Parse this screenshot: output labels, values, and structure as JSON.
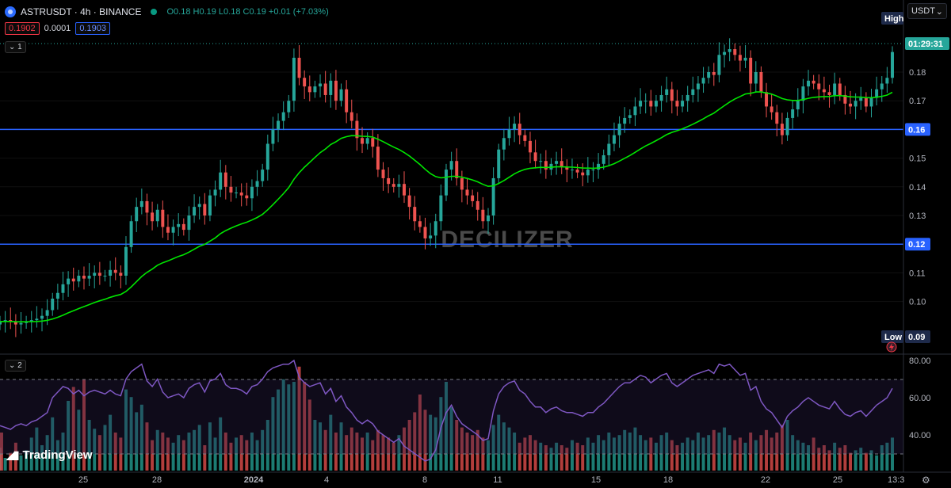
{
  "header": {
    "symbol": "ASTRUSDT · 4h · BINANCE",
    "ohlc": "O0.18 H0.19 L0.18 C0.19 +0.01 (+7.03%)",
    "bid": "0.1902",
    "spread": "0.0001",
    "ask": "0.1903",
    "pane1_label": "1",
    "pane2_label": "2",
    "currency": "USDT"
  },
  "watermark": "DECILIZER",
  "brand": "TradingView",
  "colors": {
    "up": "#26a69a",
    "down": "#ef5350",
    "ma": "#00e600",
    "hline": "#2962ff",
    "rsi": "#7e57c2",
    "axis_text": "#b2b5be"
  },
  "chart_data": [
    {
      "type": "candlestick",
      "title": "",
      "ylim": [
        0.09,
        0.19
      ],
      "y_ticks": [
        "0.18",
        "0.17",
        "0.16",
        "0.15",
        "0.14",
        "0.13",
        "0.12",
        "0.11",
        "0.10"
      ],
      "x_ticks": [
        "25",
        "28",
        "2024",
        "4",
        "8",
        "11",
        "15",
        "18",
        "22",
        "25"
      ],
      "time_label": "13:3",
      "countdown": "01:29:31",
      "horizontal_lines": [
        {
          "value": 0.16,
          "label": "0.16"
        },
        {
          "value": 0.12,
          "label": "0.12"
        }
      ],
      "high_label": "High",
      "low_label": "Low",
      "low_value": "0.09",
      "last_price": 0.19,
      "close_series": [
        0.093,
        0.0935,
        0.093,
        0.092,
        0.0925,
        0.093,
        0.0935,
        0.094,
        0.095,
        0.097,
        0.101,
        0.103,
        0.106,
        0.108,
        0.107,
        0.109,
        0.108,
        0.109,
        0.11,
        0.109,
        0.109,
        0.111,
        0.11,
        0.109,
        0.119,
        0.128,
        0.133,
        0.135,
        0.131,
        0.128,
        0.132,
        0.126,
        0.124,
        0.126,
        0.127,
        0.125,
        0.13,
        0.133,
        0.134,
        0.13,
        0.137,
        0.139,
        0.145,
        0.14,
        0.138,
        0.138,
        0.137,
        0.136,
        0.14,
        0.142,
        0.146,
        0.155,
        0.16,
        0.163,
        0.166,
        0.17,
        0.185,
        0.178,
        0.175,
        0.173,
        0.175,
        0.176,
        0.172,
        0.177,
        0.17,
        0.174,
        0.166,
        0.163,
        0.157,
        0.155,
        0.157,
        0.154,
        0.146,
        0.143,
        0.141,
        0.14,
        0.141,
        0.137,
        0.133,
        0.128,
        0.126,
        0.122,
        0.123,
        0.128,
        0.137,
        0.146,
        0.149,
        0.143,
        0.139,
        0.137,
        0.135,
        0.132,
        0.128,
        0.13,
        0.143,
        0.153,
        0.157,
        0.16,
        0.162,
        0.158,
        0.156,
        0.152,
        0.149,
        0.149,
        0.146,
        0.148,
        0.149,
        0.147,
        0.146,
        0.146,
        0.145,
        0.144,
        0.146,
        0.146,
        0.148,
        0.151,
        0.155,
        0.158,
        0.162,
        0.164,
        0.165,
        0.168,
        0.17,
        0.17,
        0.168,
        0.17,
        0.172,
        0.174,
        0.17,
        0.168,
        0.17,
        0.172,
        0.174,
        0.176,
        0.178,
        0.18,
        0.179,
        0.186,
        0.187,
        0.188,
        0.186,
        0.184,
        0.185,
        0.176,
        0.18,
        0.173,
        0.168,
        0.166,
        0.162,
        0.158,
        0.164,
        0.167,
        0.17,
        0.175,
        0.177,
        0.176,
        0.174,
        0.173,
        0.172,
        0.176,
        0.172,
        0.169,
        0.168,
        0.17,
        0.171,
        0.168,
        0.171,
        0.174,
        0.176,
        0.178,
        0.187
      ]
    },
    {
      "type": "line+bar",
      "title": "",
      "ylim": [
        25,
        80
      ],
      "y_ticks": [
        "80.00",
        "60.00",
        "40.00"
      ],
      "bands": [
        30,
        70
      ],
      "rsi_series": [
        45,
        44,
        43,
        45,
        46,
        45,
        47,
        48,
        50,
        52,
        60,
        63,
        66,
        65,
        62,
        64,
        61,
        63,
        64,
        63,
        62,
        64,
        62,
        61,
        70,
        74,
        76,
        78,
        69,
        66,
        70,
        63,
        60,
        61,
        62,
        60,
        65,
        67,
        68,
        63,
        69,
        70,
        73,
        67,
        65,
        65,
        64,
        62,
        66,
        67,
        70,
        74,
        76,
        77,
        78,
        78,
        80,
        71,
        68,
        66,
        67,
        68,
        62,
        65,
        58,
        61,
        55,
        52,
        48,
        46,
        48,
        46,
        42,
        40,
        38,
        36,
        38,
        34,
        32,
        30,
        28,
        26,
        27,
        32,
        44,
        52,
        56,
        50,
        46,
        44,
        42,
        40,
        37,
        38,
        53,
        62,
        66,
        68,
        69,
        64,
        62,
        58,
        55,
        55,
        52,
        54,
        55,
        53,
        52,
        52,
        51,
        50,
        52,
        52,
        55,
        57,
        60,
        63,
        66,
        68,
        68,
        70,
        72,
        71,
        68,
        70,
        72,
        73,
        68,
        66,
        68,
        70,
        72,
        73,
        74,
        75,
        73,
        78,
        77,
        78,
        75,
        72,
        73,
        64,
        66,
        58,
        54,
        52,
        48,
        44,
        50,
        53,
        55,
        58,
        60,
        58,
        56,
        55,
        54,
        58,
        54,
        51,
        50,
        52,
        53,
        50,
        53,
        56,
        58,
        60,
        65
      ],
      "volume_series": [
        18,
        10,
        14,
        22,
        12,
        16,
        26,
        34,
        20,
        28,
        42,
        24,
        30,
        55,
        66,
        48,
        72,
        40,
        33,
        28,
        36,
        44,
        30,
        26,
        64,
        58,
        46,
        52,
        38,
        24,
        32,
        30,
        26,
        22,
        28,
        24,
        30,
        32,
        36,
        20,
        38,
        26,
        42,
        30,
        22,
        26,
        28,
        24,
        30,
        24,
        32,
        40,
        58,
        64,
        72,
        68,
        70,
        82,
        70,
        56,
        40,
        38,
        32,
        44,
        30,
        38,
        28,
        34,
        30,
        26,
        30,
        24,
        32,
        28,
        26,
        22,
        28,
        34,
        40,
        46,
        60,
        48,
        44,
        42,
        58,
        70,
        50,
        40,
        34,
        30,
        28,
        32,
        26,
        24,
        36,
        44,
        38,
        34,
        30,
        22,
        26,
        28,
        24,
        22,
        20,
        18,
        22,
        20,
        18,
        24,
        22,
        20,
        26,
        22,
        28,
        24,
        30,
        26,
        28,
        32,
        30,
        34,
        28,
        24,
        26,
        22,
        28,
        30,
        24,
        20,
        22,
        26,
        24,
        30,
        26,
        28,
        32,
        30,
        34,
        28,
        24,
        26,
        22,
        30,
        24,
        28,
        32,
        26,
        30,
        36,
        40,
        28,
        24,
        22,
        20,
        26,
        18,
        20,
        16,
        22,
        18,
        20,
        14,
        16,
        18,
        14,
        16,
        12,
        20,
        22,
        26,
        30
      ]
    }
  ]
}
